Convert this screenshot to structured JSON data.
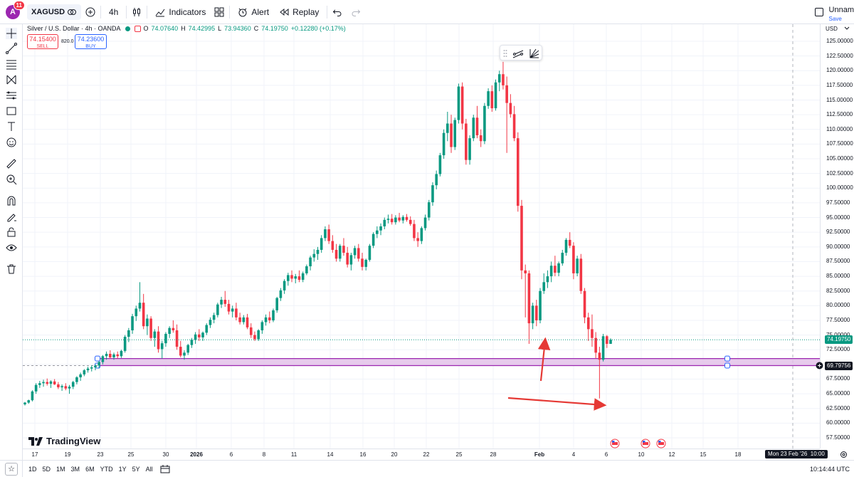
{
  "topbar": {
    "avatar_letter": "A",
    "notifications": "11",
    "symbol": "XAGUSD",
    "interval": "4h",
    "indicators_label": "Indicators",
    "alert_label": "Alert",
    "replay_label": "Replay",
    "layout_name": "Unnam",
    "save_label": "Save"
  },
  "legend": {
    "title": "Silver / U.S. Dollar · 4h · OANDA",
    "o": "74.07640",
    "h": "74.42995",
    "l": "73.94360",
    "c": "74.19750",
    "change": "+0.12280 (+0.17%)"
  },
  "trade": {
    "sell_price": "74.15400",
    "sell_label": "SELL",
    "spread": "820.0",
    "buy_price": "74.23600",
    "buy_label": "BUY"
  },
  "price_axis": {
    "currency": "USD",
    "ticks": [
      "125.00000",
      "122.50000",
      "120.00000",
      "117.50000",
      "115.00000",
      "112.50000",
      "110.00000",
      "107.50000",
      "105.00000",
      "102.50000",
      "100.00000",
      "97.50000",
      "95.00000",
      "92.50000",
      "90.00000",
      "87.50000",
      "85.00000",
      "82.50000",
      "80.00000",
      "77.50000",
      "75.00000",
      "72.50000",
      "67.50000",
      "65.00000",
      "62.50000",
      "60.00000",
      "57.50000"
    ],
    "last_price": "74.19750",
    "cursor_price": "69.79756",
    "colors": {
      "last_price": "#089981",
      "cursor_price": "#131722"
    }
  },
  "time_axis": {
    "ticks": [
      "17",
      "19",
      "23",
      "25",
      "30",
      "2026",
      "6",
      "8",
      "11",
      "14",
      "16",
      "20",
      "22",
      "25",
      "28",
      "Feb",
      "4",
      "6",
      "10",
      "12",
      "15",
      "18"
    ],
    "cursor_time": "Mon 23 Feb '26",
    "cursor_clock": "10:00"
  },
  "bottombar": {
    "ranges": [
      "1D",
      "5D",
      "1M",
      "3M",
      "6M",
      "YTD",
      "1Y",
      "5Y",
      "All"
    ],
    "clock": "10:14:44 UTC"
  },
  "branding": {
    "logo_text": "TradingView"
  },
  "colors": {
    "up": "#089981",
    "down": "#f23645",
    "zone_fill": "#e1bee7",
    "zone_border": "#9c27b0",
    "arrow": "#e53935"
  },
  "chart_data": {
    "type": "candlestick",
    "symbol": "XAGUSD",
    "interval": "4h",
    "ylim": [
      56.5,
      127
    ],
    "candles_ohlc": [
      [
        63.2,
        63.6,
        63.0,
        63.5
      ],
      [
        63.5,
        64.0,
        63.3,
        63.9
      ],
      [
        63.9,
        65.6,
        63.7,
        65.4
      ],
      [
        65.4,
        66.8,
        65.0,
        66.5
      ],
      [
        66.5,
        67.2,
        66.0,
        66.8
      ],
      [
        66.8,
        67.4,
        66.2,
        67.0
      ],
      [
        67.0,
        67.6,
        66.4,
        66.7
      ],
      [
        66.7,
        67.3,
        66.0,
        67.1
      ],
      [
        67.1,
        67.5,
        66.5,
        66.6
      ],
      [
        66.6,
        67.0,
        65.8,
        66.1
      ],
      [
        66.1,
        66.6,
        65.5,
        66.3
      ],
      [
        66.3,
        66.8,
        65.6,
        65.9
      ],
      [
        65.9,
        66.5,
        65.0,
        66.2
      ],
      [
        66.2,
        67.2,
        65.8,
        67.0
      ],
      [
        67.0,
        68.0,
        66.6,
        67.8
      ],
      [
        67.8,
        68.6,
        67.2,
        68.3
      ],
      [
        68.3,
        69.2,
        68.0,
        69.0
      ],
      [
        69.0,
        69.6,
        68.6,
        69.3
      ],
      [
        69.3,
        69.8,
        68.8,
        69.5
      ],
      [
        69.5,
        70.0,
        69.0,
        69.8
      ],
      [
        69.8,
        70.6,
        69.3,
        70.4
      ],
      [
        70.4,
        71.6,
        70.0,
        71.4
      ],
      [
        71.4,
        72.2,
        70.8,
        71.8
      ],
      [
        71.8,
        72.4,
        71.0,
        71.2
      ],
      [
        71.2,
        72.0,
        70.8,
        71.7
      ],
      [
        71.7,
        72.2,
        71.0,
        71.4
      ],
      [
        71.4,
        72.5,
        71.1,
        72.3
      ],
      [
        72.3,
        75.0,
        72.0,
        74.7
      ],
      [
        74.7,
        76.2,
        73.8,
        75.8
      ],
      [
        75.8,
        78.6,
        75.2,
        78.2
      ],
      [
        78.2,
        80.0,
        77.4,
        79.5
      ],
      [
        79.5,
        84.0,
        79.0,
        80.5
      ],
      [
        80.5,
        82.0,
        76.0,
        76.5
      ],
      [
        76.5,
        78.5,
        75.0,
        77.8
      ],
      [
        77.8,
        78.2,
        74.0,
        74.5
      ],
      [
        74.5,
        76.0,
        73.0,
        75.6
      ],
      [
        75.6,
        76.5,
        72.0,
        72.6
      ],
      [
        72.6,
        74.0,
        71.0,
        73.6
      ],
      [
        73.6,
        75.5,
        73.0,
        75.2
      ],
      [
        75.2,
        76.5,
        74.5,
        76.2
      ],
      [
        76.2,
        77.5,
        75.4,
        75.8
      ],
      [
        75.8,
        76.8,
        72.5,
        73.0
      ],
      [
        73.0,
        74.0,
        71.2,
        71.5
      ],
      [
        71.5,
        72.4,
        70.8,
        72.0
      ],
      [
        72.0,
        73.5,
        71.6,
        73.3
      ],
      [
        73.3,
        74.5,
        72.8,
        74.2
      ],
      [
        74.2,
        75.5,
        73.5,
        75.1
      ],
      [
        75.1,
        76.0,
        74.0,
        74.6
      ],
      [
        74.6,
        75.6,
        74.0,
        75.4
      ],
      [
        75.4,
        77.0,
        75.0,
        76.7
      ],
      [
        76.7,
        78.0,
        76.2,
        77.6
      ],
      [
        77.6,
        78.8,
        77.0,
        78.4
      ],
      [
        78.4,
        80.5,
        78.0,
        80.2
      ],
      [
        80.2,
        81.5,
        79.6,
        81.0
      ],
      [
        81.0,
        82.5,
        79.8,
        80.3
      ],
      [
        80.3,
        81.0,
        78.5,
        79.0
      ],
      [
        79.0,
        80.0,
        78.0,
        79.5
      ],
      [
        79.5,
        80.5,
        77.5,
        78.0
      ],
      [
        78.0,
        78.8,
        76.8,
        77.2
      ],
      [
        77.2,
        78.4,
        76.8,
        78.0
      ],
      [
        78.0,
        78.6,
        76.0,
        76.3
      ],
      [
        76.3,
        77.0,
        74.5,
        75.0
      ],
      [
        75.0,
        75.6,
        74.0,
        74.3
      ],
      [
        74.3,
        76.0,
        74.0,
        75.8
      ],
      [
        75.8,
        77.5,
        75.2,
        77.2
      ],
      [
        77.2,
        78.5,
        76.6,
        78.0
      ],
      [
        78.0,
        79.0,
        77.0,
        77.5
      ],
      [
        77.5,
        79.5,
        77.2,
        79.2
      ],
      [
        79.2,
        81.5,
        78.8,
        81.3
      ],
      [
        81.3,
        83.0,
        80.8,
        82.6
      ],
      [
        82.6,
        84.5,
        82.0,
        84.2
      ],
      [
        84.2,
        85.6,
        83.4,
        85.2
      ],
      [
        85.2,
        86.0,
        84.0,
        84.6
      ],
      [
        84.6,
        85.4,
        83.8,
        85.0
      ],
      [
        85.0,
        86.0,
        84.0,
        84.4
      ],
      [
        84.4,
        85.8,
        84.0,
        85.5
      ],
      [
        85.5,
        87.0,
        85.2,
        86.7
      ],
      [
        86.7,
        88.5,
        86.0,
        88.2
      ],
      [
        88.2,
        89.6,
        87.5,
        88.8
      ],
      [
        88.8,
        90.0,
        87.8,
        89.5
      ],
      [
        89.5,
        92.0,
        89.0,
        91.5
      ],
      [
        91.5,
        93.5,
        91.0,
        93.0
      ],
      [
        93.0,
        93.8,
        90.5,
        91.0
      ],
      [
        91.0,
        92.0,
        89.0,
        89.5
      ],
      [
        89.5,
        90.5,
        87.5,
        88.0
      ],
      [
        88.0,
        90.5,
        87.5,
        90.2
      ],
      [
        90.2,
        91.5,
        88.5,
        89.0
      ],
      [
        89.0,
        90.0,
        86.5,
        87.0
      ],
      [
        87.0,
        89.0,
        86.0,
        88.6
      ],
      [
        88.6,
        90.2,
        88.0,
        89.8
      ],
      [
        89.8,
        90.5,
        87.5,
        88.0
      ],
      [
        88.0,
        89.0,
        86.0,
        86.6
      ],
      [
        86.6,
        88.0,
        86.0,
        87.8
      ],
      [
        87.8,
        90.5,
        87.5,
        90.2
      ],
      [
        90.2,
        92.5,
        89.8,
        92.2
      ],
      [
        92.2,
        93.5,
        91.5,
        92.8
      ],
      [
        92.8,
        94.0,
        92.0,
        93.5
      ],
      [
        93.5,
        95.0,
        93.0,
        94.6
      ],
      [
        94.6,
        95.5,
        94.0,
        94.8
      ],
      [
        94.8,
        95.6,
        93.8,
        94.2
      ],
      [
        94.2,
        95.4,
        93.8,
        95.0
      ],
      [
        95.0,
        95.8,
        94.2,
        94.5
      ],
      [
        94.5,
        95.4,
        94.0,
        95.1
      ],
      [
        95.1,
        95.6,
        94.3,
        94.6
      ],
      [
        94.6,
        95.2,
        93.6,
        93.9
      ],
      [
        93.9,
        94.6,
        91.0,
        91.5
      ],
      [
        91.5,
        92.5,
        90.0,
        91.0
      ],
      [
        91.0,
        93.5,
        90.5,
        93.2
      ],
      [
        93.2,
        95.5,
        92.8,
        95.0
      ],
      [
        95.0,
        98.0,
        94.5,
        97.6
      ],
      [
        97.6,
        101.0,
        97.0,
        100.5
      ],
      [
        100.5,
        103.0,
        99.8,
        102.4
      ],
      [
        102.4,
        106.0,
        102.0,
        105.6
      ],
      [
        105.6,
        110.0,
        105.0,
        109.4
      ],
      [
        109.4,
        113.0,
        108.0,
        111.0
      ],
      [
        111.0,
        112.5,
        106.0,
        107.0
      ],
      [
        107.0,
        112.0,
        106.5,
        111.6
      ],
      [
        111.6,
        117.8,
        111.0,
        117.3
      ],
      [
        117.3,
        118.0,
        110.0,
        111.0
      ],
      [
        111.0,
        111.8,
        104.0,
        104.8
      ],
      [
        104.8,
        109.0,
        104.0,
        108.5
      ],
      [
        108.5,
        112.5,
        108.0,
        112.0
      ],
      [
        112.0,
        114.0,
        108.5,
        109.0
      ],
      [
        109.0,
        110.0,
        107.0,
        108.0
      ],
      [
        108.0,
        114.5,
        107.5,
        114.0
      ],
      [
        114.0,
        117.0,
        113.5,
        116.5
      ],
      [
        116.5,
        117.5,
        113.0,
        113.6
      ],
      [
        113.6,
        118.5,
        113.2,
        118.0
      ],
      [
        118.0,
        120.0,
        116.5,
        119.4
      ],
      [
        119.4,
        121.5,
        116.8,
        117.5
      ],
      [
        117.5,
        119.0,
        106.0,
        114.5
      ],
      [
        114.5,
        116.0,
        112.0,
        112.6
      ],
      [
        112.6,
        114.0,
        108.0,
        108.5
      ],
      [
        108.5,
        109.5,
        96.0,
        97.0
      ],
      [
        97.0,
        98.0,
        84.5,
        86.0
      ],
      [
        86.0,
        87.0,
        78.0,
        85.5
      ],
      [
        85.5,
        86.0,
        73.5,
        77.0
      ],
      [
        77.0,
        80.5,
        76.0,
        80.0
      ],
      [
        80.0,
        81.0,
        76.5,
        77.5
      ],
      [
        77.5,
        83.0,
        77.0,
        82.5
      ],
      [
        82.5,
        85.5,
        82.0,
        84.0
      ],
      [
        84.0,
        86.0,
        83.0,
        85.0
      ],
      [
        85.0,
        87.5,
        84.0,
        86.8
      ],
      [
        86.8,
        88.5,
        85.0,
        85.6
      ],
      [
        85.6,
        87.5,
        85.0,
        87.2
      ],
      [
        87.2,
        89.5,
        86.8,
        89.0
      ],
      [
        89.0,
        91.5,
        88.5,
        91.2
      ],
      [
        91.2,
        92.5,
        89.8,
        90.2
      ],
      [
        90.2,
        90.8,
        84.5,
        85.5
      ],
      [
        85.5,
        88.5,
        85.0,
        88.0
      ],
      [
        88.0,
        88.8,
        82.0,
        82.5
      ],
      [
        82.5,
        83.0,
        77.0,
        78.0
      ],
      [
        78.0,
        78.8,
        74.0,
        76.0
      ],
      [
        76.0,
        78.5,
        73.0,
        74.5
      ],
      [
        74.5,
        75.5,
        71.0,
        72.0
      ],
      [
        72.0,
        73.0,
        64.2,
        70.8
      ],
      [
        70.8,
        75.2,
        70.5,
        74.8
      ],
      [
        74.8,
        75.0,
        72.8,
        73.5
      ],
      [
        73.5,
        74.43,
        73.5,
        74.2
      ]
    ],
    "support_zone": {
      "top": 71.0,
      "bottom": 69.8
    }
  }
}
